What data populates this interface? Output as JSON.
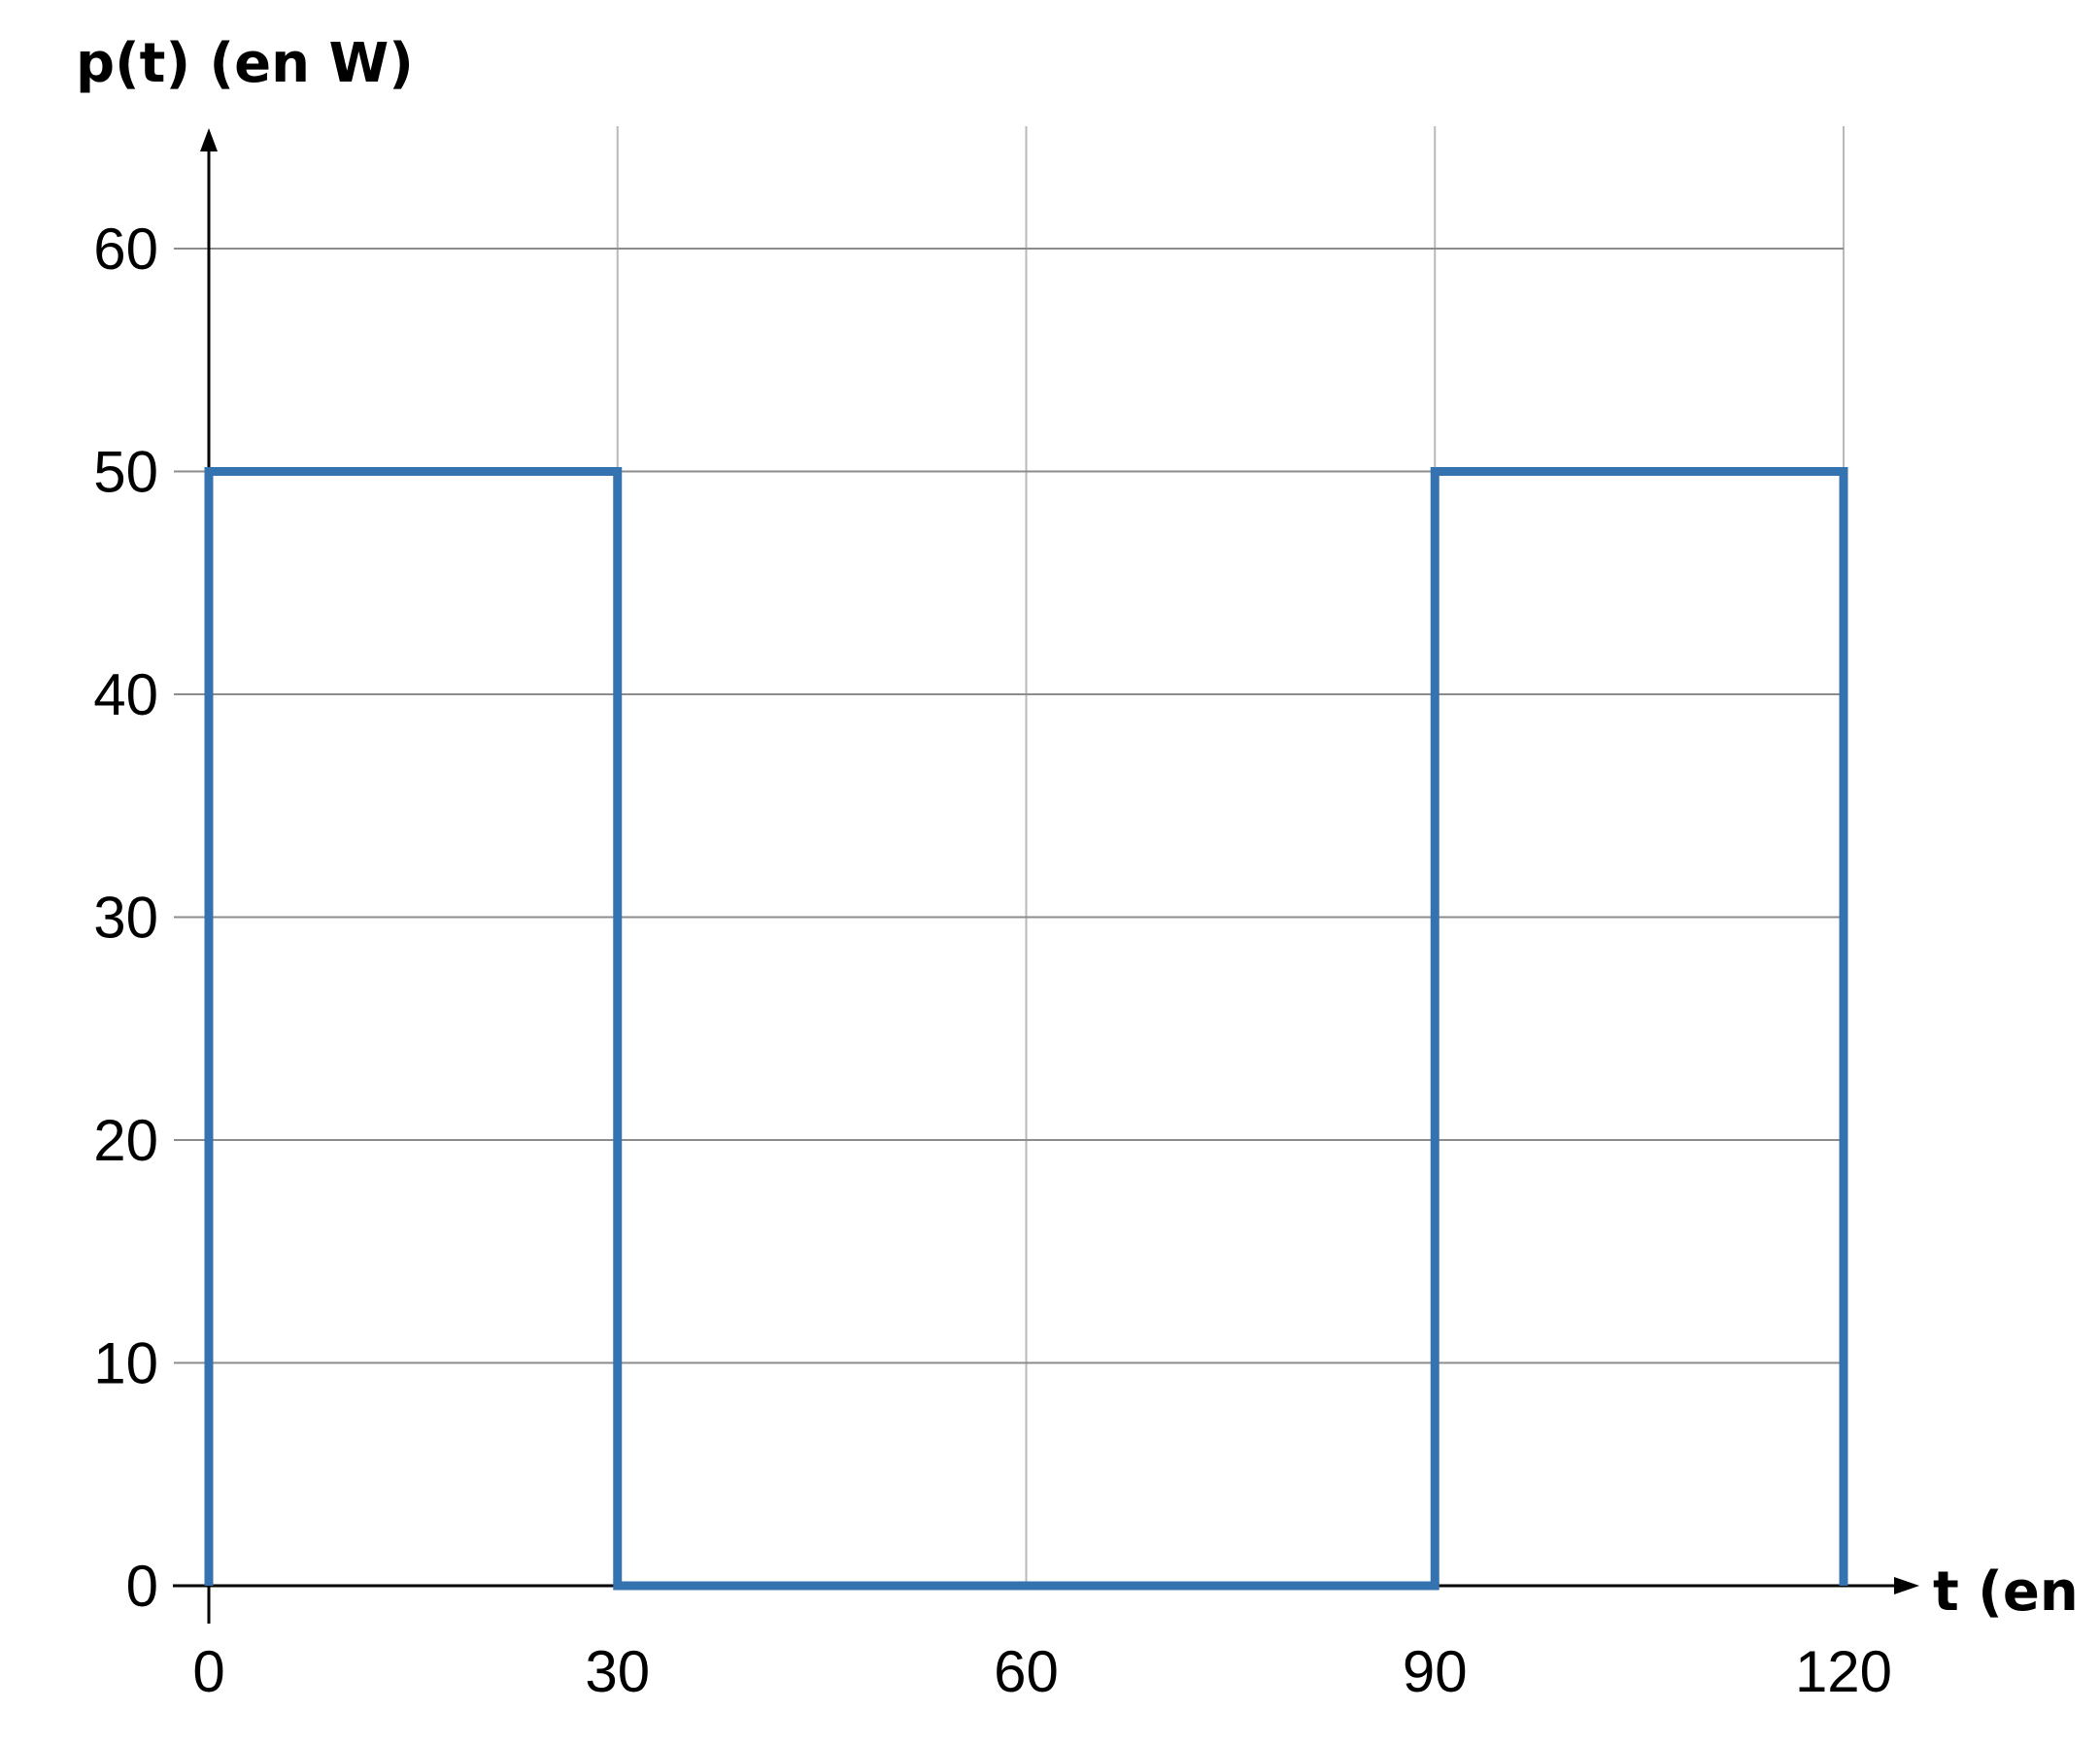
{
  "chart_data": {
    "type": "line",
    "title": "",
    "xlabel": "t (en s)",
    "ylabel": "p(t) (en W)",
    "xlim": [
      0,
      120
    ],
    "ylim": [
      0,
      65
    ],
    "x_ticks": [
      0,
      30,
      60,
      90,
      120
    ],
    "y_ticks": [
      0,
      10,
      20,
      30,
      40,
      50,
      60
    ],
    "grid": true,
    "series": [
      {
        "color": "#3572b0",
        "points": [
          [
            0,
            0
          ],
          [
            0,
            50
          ],
          [
            30,
            50
          ],
          [
            30,
            0
          ],
          [
            90,
            0
          ],
          [
            90,
            50
          ],
          [
            120,
            50
          ],
          [
            120,
            0
          ]
        ]
      }
    ]
  }
}
